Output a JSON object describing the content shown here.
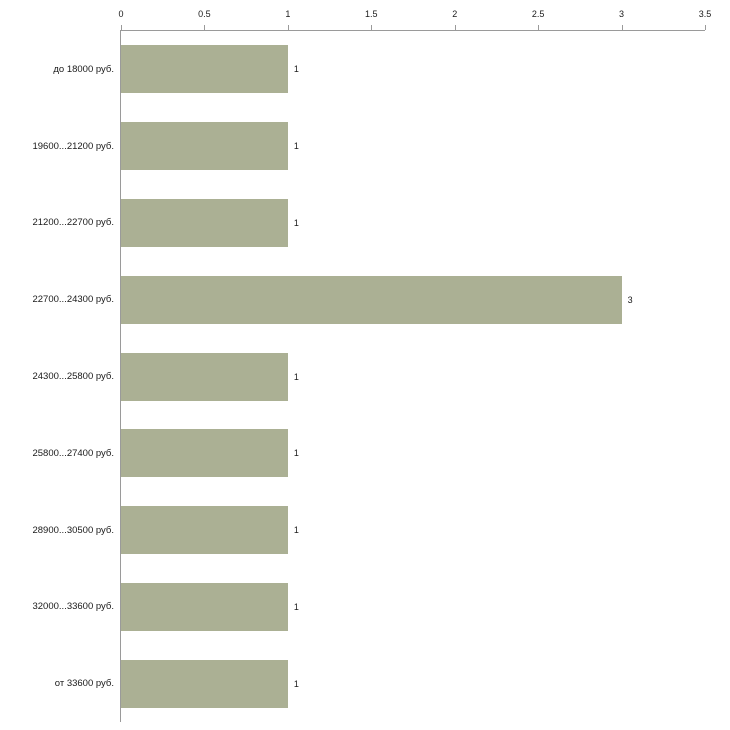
{
  "chart_data": {
    "type": "bar",
    "orientation": "horizontal",
    "title": "",
    "xlabel": "",
    "ylabel": "",
    "categories": [
      "до 18000 руб.",
      "19600...21200 руб.",
      "21200...22700 руб.",
      "22700...24300 руб.",
      "24300...25800 руб.",
      "25800...27400 руб.",
      "28900...30500 руб.",
      "32000...33600 руб.",
      "от 33600 руб."
    ],
    "values": [
      1,
      1,
      1,
      3,
      1,
      1,
      1,
      1,
      1
    ],
    "value_labels": [
      "1",
      "1",
      "1",
      "3",
      "1",
      "1",
      "1",
      "1",
      "1"
    ],
    "x_ticks": [
      "0",
      "0.5",
      "1",
      "1.5",
      "2",
      "2.5",
      "3",
      "3.5"
    ],
    "xlim": [
      0,
      3.5
    ],
    "grid": false,
    "legend": "none",
    "bar_color": "#abb094",
    "axis_color": "#9a9a9a",
    "text_color": "#1a1a1a",
    "background_color": "#ffffff"
  }
}
